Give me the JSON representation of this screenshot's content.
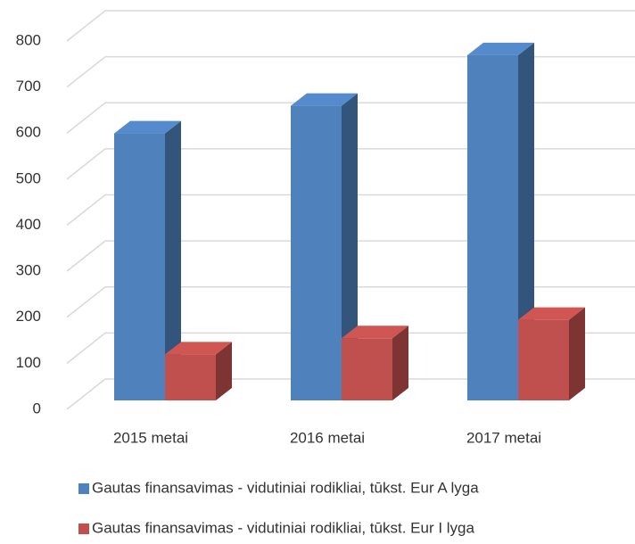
{
  "chart_data": {
    "type": "bar3d",
    "categories": [
      "2015 metai",
      "2016 metai",
      "2017 metai"
    ],
    "series": [
      {
        "name": "Gautas finansavimas - vidutiniai rodikliai, tūkst. Eur A lyga",
        "color": "#4f81bd",
        "values": [
          580,
          640,
          750
        ]
      },
      {
        "name": "Gautas finansavimas - vidutiniai rodikliai, tūkst. Eur I lyga",
        "color": "#c0504d",
        "values": [
          100,
          135,
          175
        ]
      }
    ],
    "ylim": [
      0,
      800
    ],
    "yticks": [
      0,
      100,
      200,
      300,
      400,
      500,
      600,
      700,
      800
    ],
    "grid": true
  }
}
